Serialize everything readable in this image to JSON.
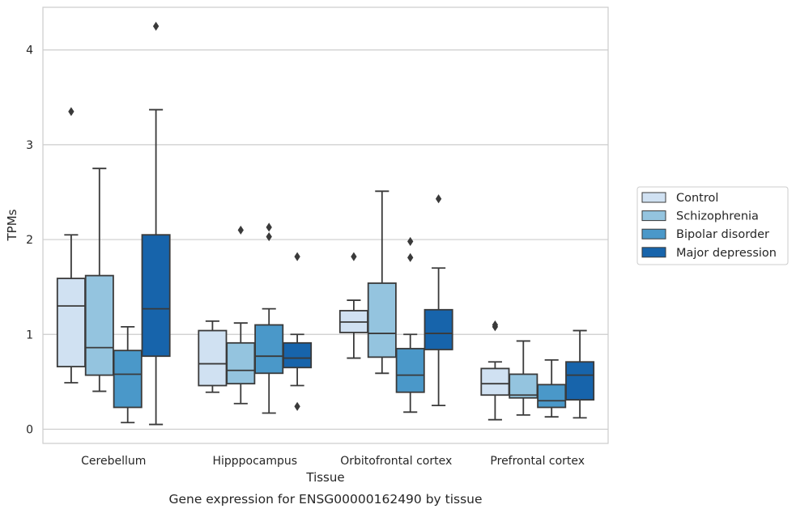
{
  "chart_data": {
    "type": "box",
    "caption": "Gene expression for ENSG00000162490 by tissue",
    "xlabel": "Tissue",
    "ylabel": "TPMs",
    "ylim": [
      -0.15,
      4.45
    ],
    "yticks": [
      0,
      1,
      2,
      3,
      4
    ],
    "ytick_labels": [
      "0",
      "1",
      "2",
      "3",
      "4"
    ],
    "grid": "horizontal",
    "legend_position": "right",
    "categories": [
      "Cerebellum",
      "Hipppocampus",
      "Orbitofrontal cortex",
      "Prefrontal cortex"
    ],
    "series": [
      {
        "name": "Control",
        "color": "#d0e1f2",
        "boxes": [
          {
            "q1": 0.66,
            "median": 1.3,
            "q3": 1.59,
            "whisker_low": 0.49,
            "whisker_high": 2.05,
            "outliers": [
              3.35
            ]
          },
          {
            "q1": 0.46,
            "median": 0.69,
            "q3": 1.04,
            "whisker_low": 0.39,
            "whisker_high": 1.14,
            "outliers": []
          },
          {
            "q1": 1.02,
            "median": 1.13,
            "q3": 1.25,
            "whisker_low": 0.75,
            "whisker_high": 1.36,
            "outliers": [
              1.82
            ]
          },
          {
            "q1": 0.36,
            "median": 0.48,
            "q3": 0.64,
            "whisker_low": 0.1,
            "whisker_high": 0.71,
            "outliers": [
              1.08,
              1.1
            ]
          }
        ]
      },
      {
        "name": "Schizophrenia",
        "color": "#94c4df",
        "boxes": [
          {
            "q1": 0.57,
            "median": 0.86,
            "q3": 1.62,
            "whisker_low": 0.4,
            "whisker_high": 2.75,
            "outliers": []
          },
          {
            "q1": 0.48,
            "median": 0.62,
            "q3": 0.91,
            "whisker_low": 0.27,
            "whisker_high": 1.12,
            "outliers": [
              2.1
            ]
          },
          {
            "q1": 0.76,
            "median": 1.01,
            "q3": 1.54,
            "whisker_low": 0.59,
            "whisker_high": 2.51,
            "outliers": []
          },
          {
            "q1": 0.33,
            "median": 0.36,
            "q3": 0.58,
            "whisker_low": 0.15,
            "whisker_high": 0.93,
            "outliers": []
          }
        ]
      },
      {
        "name": "Bipolar disorder",
        "color": "#4a98c9",
        "boxes": [
          {
            "q1": 0.23,
            "median": 0.58,
            "q3": 0.83,
            "whisker_low": 0.07,
            "whisker_high": 1.08,
            "outliers": []
          },
          {
            "q1": 0.59,
            "median": 0.77,
            "q3": 1.1,
            "whisker_low": 0.17,
            "whisker_high": 1.27,
            "outliers": [
              2.03,
              2.13
            ]
          },
          {
            "q1": 0.39,
            "median": 0.57,
            "q3": 0.85,
            "whisker_low": 0.18,
            "whisker_high": 1.0,
            "outliers": [
              1.81,
              1.98
            ]
          },
          {
            "q1": 0.23,
            "median": 0.3,
            "q3": 0.47,
            "whisker_low": 0.13,
            "whisker_high": 0.73,
            "outliers": []
          }
        ]
      },
      {
        "name": "Major depression",
        "color": "#1764ab",
        "boxes": [
          {
            "q1": 0.77,
            "median": 1.27,
            "q3": 2.05,
            "whisker_low": 0.05,
            "whisker_high": 3.37,
            "outliers": [
              4.25
            ]
          },
          {
            "q1": 0.65,
            "median": 0.75,
            "q3": 0.91,
            "whisker_low": 0.46,
            "whisker_high": 1.0,
            "outliers": [
              0.24,
              1.82
            ]
          },
          {
            "q1": 0.84,
            "median": 1.01,
            "q3": 1.26,
            "whisker_low": 0.25,
            "whisker_high": 1.7,
            "outliers": [
              2.43
            ]
          },
          {
            "q1": 0.31,
            "median": 0.57,
            "q3": 0.71,
            "whisker_low": 0.12,
            "whisker_high": 1.04,
            "outliers": []
          }
        ]
      }
    ]
  }
}
